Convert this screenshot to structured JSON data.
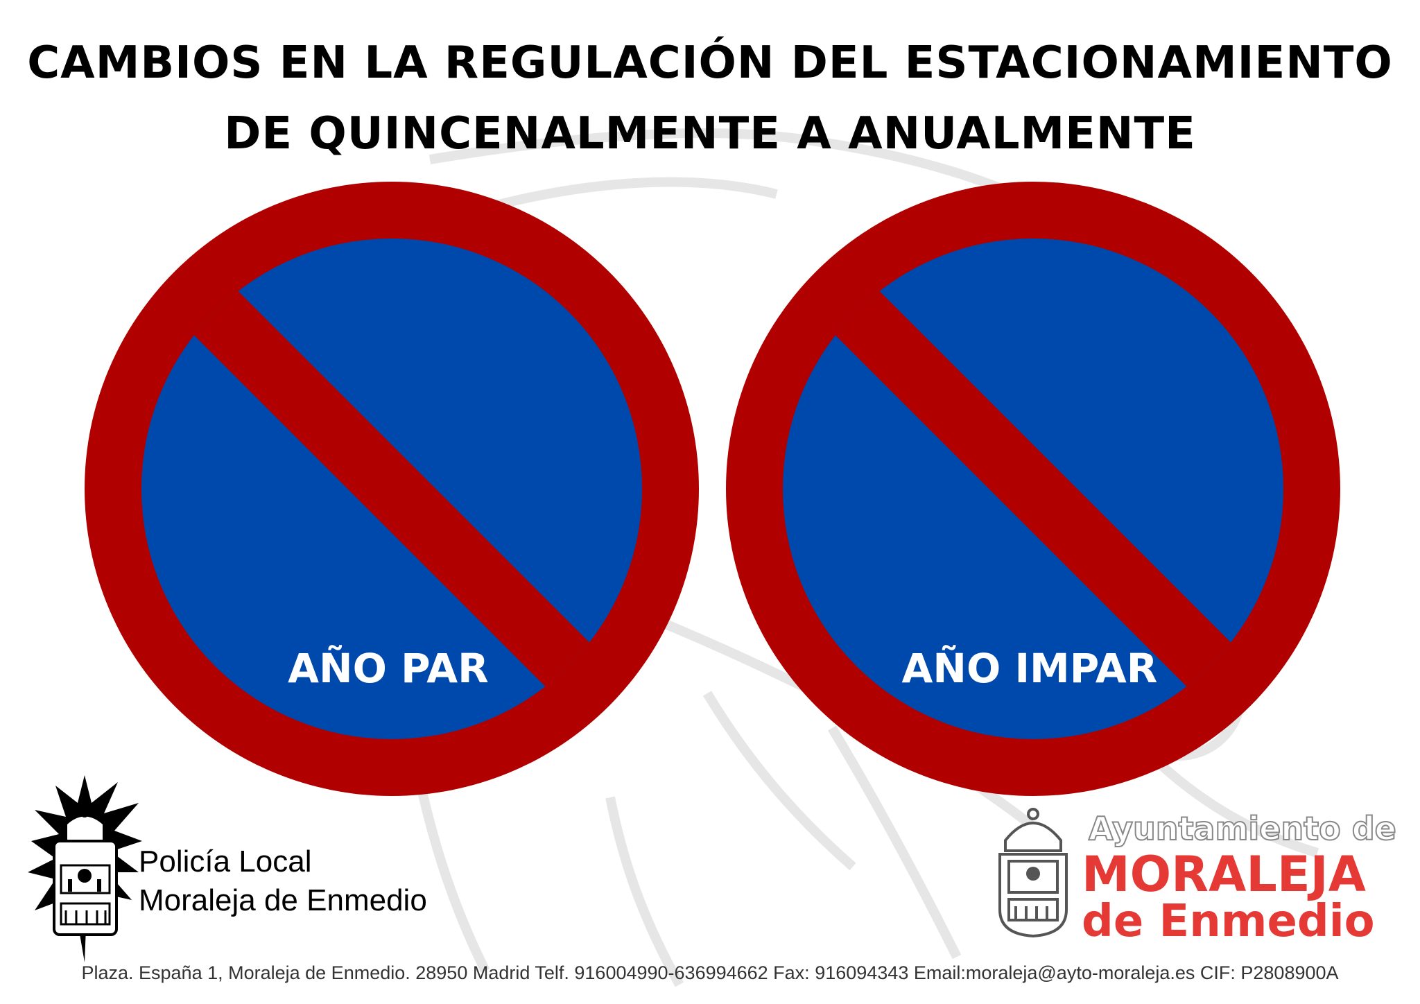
{
  "title": {
    "line1": "CAMBIOS EN LA REGULACIÓN DEL ESTACIONAMIENTO",
    "line2": "DE QUINCENALMENTE A ANUALMENTE"
  },
  "signs": [
    {
      "label": "AÑO PAR",
      "type": "no-parking-sign"
    },
    {
      "label": "AÑO IMPAR",
      "type": "no-parking-sign"
    }
  ],
  "colors": {
    "sign_red": "#b00000",
    "sign_blue": "#0049ac",
    "brand_red": "#e53935"
  },
  "police": {
    "line1": "Policía Local",
    "line2": "Moraleja de Enmedio"
  },
  "ayuntamiento": {
    "top": "Ayuntamiento de",
    "name1": "MORALEJA",
    "name2": "de Enmedio"
  },
  "footer": "Plaza. España 1, Moraleja de Enmedio. 28950 Madrid Telf. 916004990-636994662 Fax: 916094343 Email:moraleja@ayto-moraleja.es CIF: P2808900A"
}
